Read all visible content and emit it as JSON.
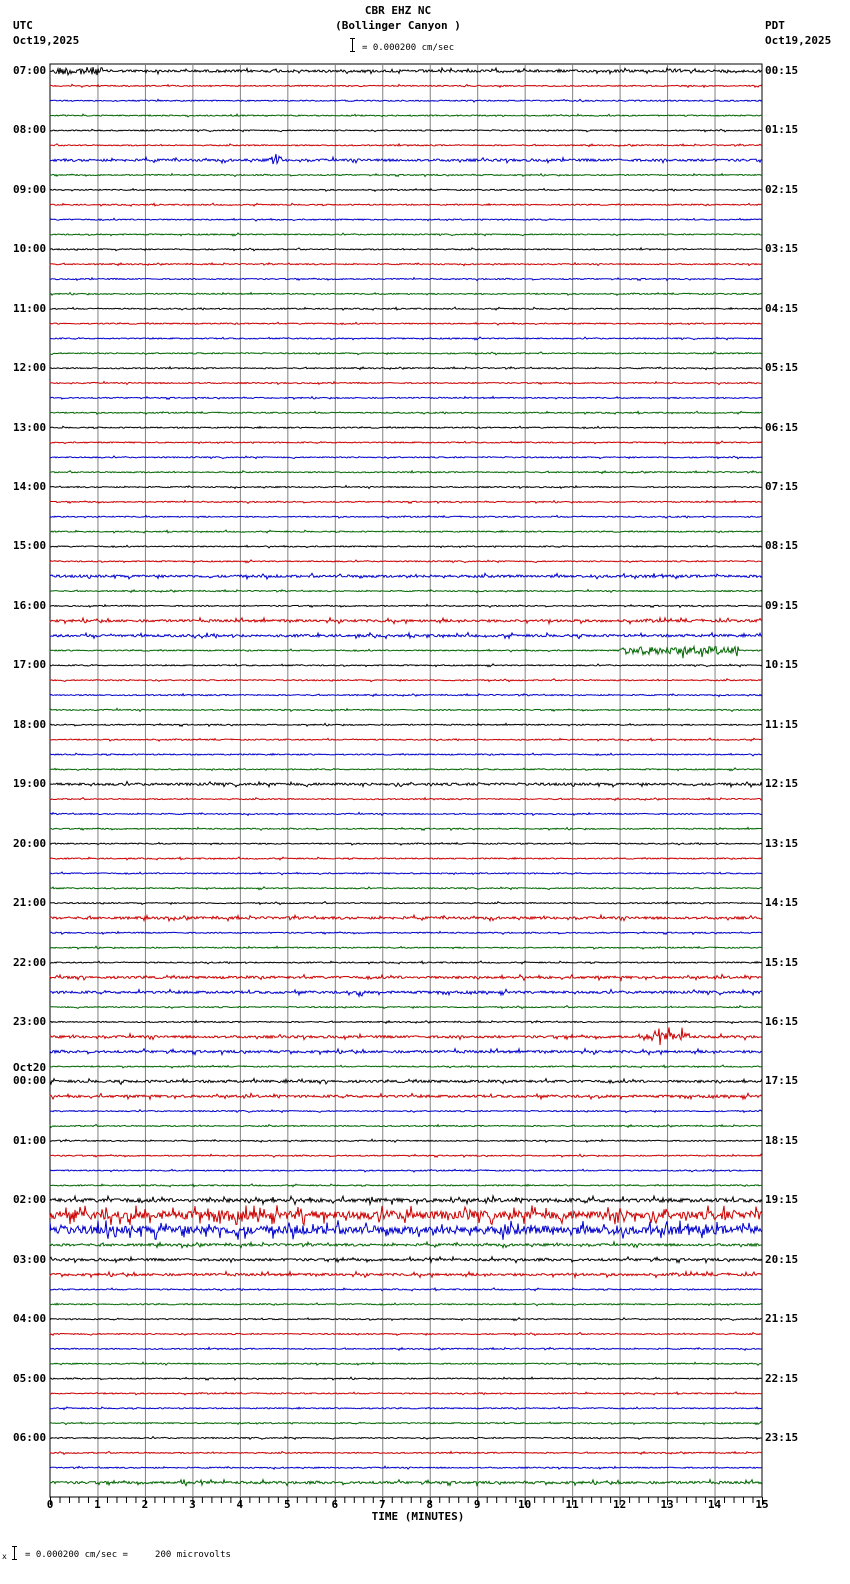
{
  "header": {
    "station": "CBR EHZ NC",
    "location": "(Bollinger Canyon )",
    "scale_text": "= 0.000200 cm/sec",
    "left_tz": "UTC",
    "left_date": "Oct19,2025",
    "right_tz": "PDT",
    "right_date": "Oct19,2025"
  },
  "footer": {
    "scale_prefix": "x",
    "scale_text": "= 0.000200 cm/sec =     200 microvolts"
  },
  "colors": {
    "trace_cycle": [
      "#000000",
      "#cc0000",
      "#0000cc",
      "#006600"
    ],
    "grid": "#808080",
    "axis": "#000000"
  },
  "chart_data": {
    "type": "line",
    "title": "CBR EHZ NC (Bollinger Canyon )",
    "subtitle": "Helicorder 24-hour seismogram, 4 traces of 15 minutes per hour",
    "xlabel": "TIME (MINUTES)",
    "ylabel": "",
    "x_ticks": [
      0,
      1,
      2,
      3,
      4,
      5,
      6,
      7,
      8,
      9,
      10,
      11,
      12,
      13,
      14,
      15
    ],
    "xlim": [
      0,
      15
    ],
    "grid": true,
    "scale": "0.000200 cm/sec = 200 microvolts",
    "left_labels_utc": [
      "07:00",
      "08:00",
      "09:00",
      "10:00",
      "11:00",
      "12:00",
      "13:00",
      "14:00",
      "15:00",
      "16:00",
      "17:00",
      "18:00",
      "19:00",
      "20:00",
      "21:00",
      "22:00",
      "23:00",
      "00:00",
      "01:00",
      "02:00",
      "03:00",
      "04:00",
      "05:00",
      "06:00"
    ],
    "left_date_change": {
      "label": "Oct20",
      "before_hour": "00:00"
    },
    "right_labels_pdt": [
      "00:15",
      "01:15",
      "02:15",
      "03:15",
      "04:15",
      "05:15",
      "06:15",
      "07:15",
      "08:15",
      "09:15",
      "10:15",
      "11:15",
      "12:15",
      "13:15",
      "14:15",
      "15:15",
      "16:15",
      "17:15",
      "18:15",
      "19:15",
      "20:15",
      "21:15",
      "22:15",
      "23:15"
    ],
    "traces_per_hour": 4,
    "trace_activity": [
      [
        2,
        1,
        1,
        1
      ],
      [
        1,
        1,
        2,
        1
      ],
      [
        1,
        1,
        1,
        1
      ],
      [
        1,
        1,
        1,
        1
      ],
      [
        1,
        1,
        1,
        1
      ],
      [
        1,
        1,
        1,
        1
      ],
      [
        1,
        1,
        1,
        1
      ],
      [
        1,
        1,
        1,
        1
      ],
      [
        1,
        1,
        2,
        1
      ],
      [
        1,
        2,
        2,
        1
      ],
      [
        1,
        1,
        1,
        1
      ],
      [
        1,
        1,
        1,
        1
      ],
      [
        2,
        1,
        1,
        1
      ],
      [
        1,
        1,
        1,
        1
      ],
      [
        1,
        2,
        1,
        1
      ],
      [
        1,
        2,
        2,
        1
      ],
      [
        1,
        2,
        2,
        1
      ],
      [
        2,
        2,
        1,
        1
      ],
      [
        1,
        1,
        1,
        1
      ],
      [
        3,
        4,
        4,
        2
      ],
      [
        2,
        2,
        1,
        1
      ],
      [
        1,
        1,
        1,
        1
      ],
      [
        1,
        1,
        1,
        1
      ],
      [
        1,
        1,
        1,
        2
      ]
    ],
    "notable_events": [
      {
        "trace": "07:00",
        "minute_range": [
          0.1,
          1.1
        ],
        "note": "spikes at start"
      },
      {
        "trace": "08:30",
        "minute_range": [
          4.6,
          4.9
        ],
        "note": "burst"
      },
      {
        "trace": "16:45",
        "minute_range": [
          12.0,
          14.5
        ],
        "note": "burst"
      },
      {
        "trace": "22:30",
        "minute_range": [
          6.5,
          6.6
        ],
        "note": "spike"
      },
      {
        "trace": "23:15",
        "minute_range": [
          12.5,
          13.5
        ],
        "note": "burst"
      },
      {
        "trace": "02:15",
        "minute_range": [
          0,
          15
        ],
        "note": "elevated noise throughout"
      },
      {
        "trace": "02:30",
        "minute_range": [
          0,
          15
        ],
        "note": "elevated noise throughout"
      },
      {
        "trace": "06:45",
        "minute_range": [
          2.8,
          2.9
        ],
        "note": "spike"
      }
    ]
  }
}
